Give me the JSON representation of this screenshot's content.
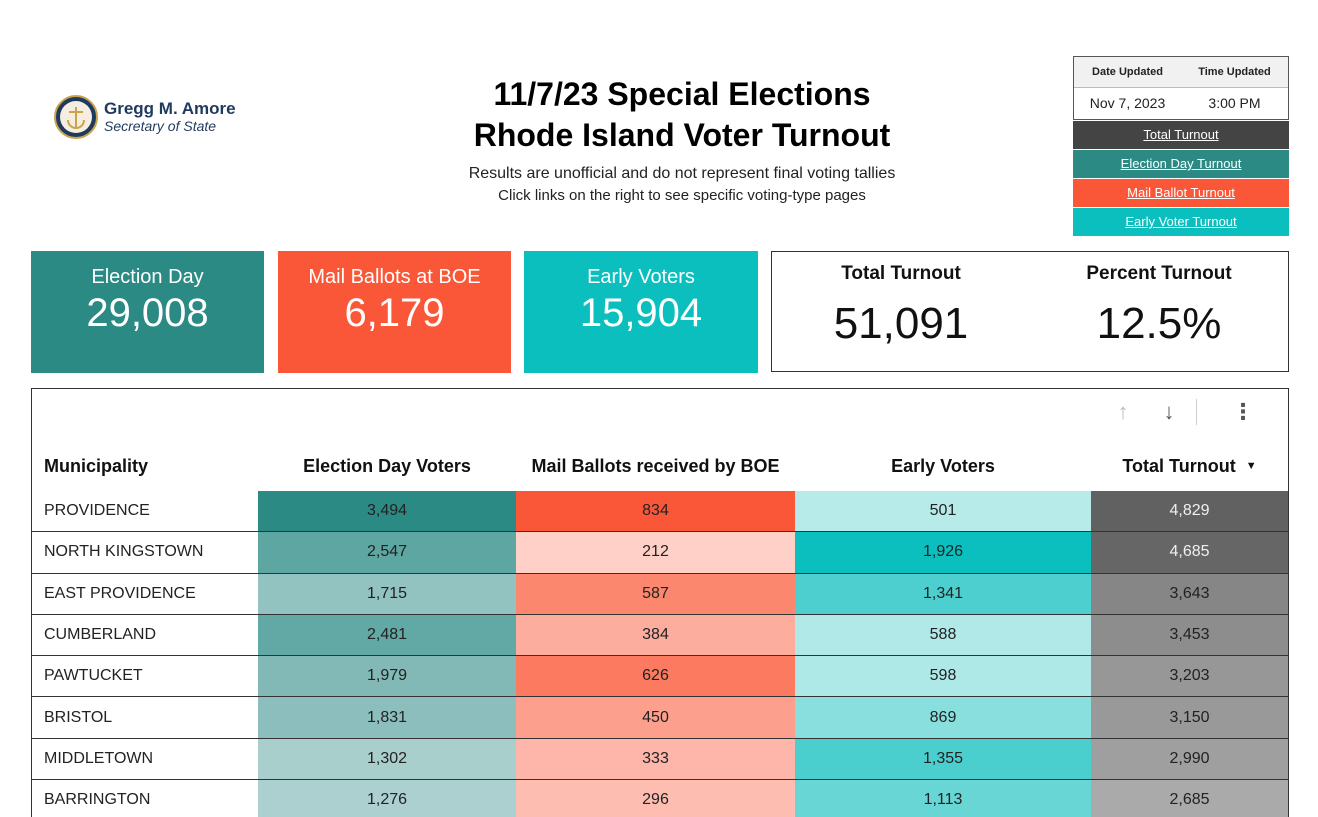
{
  "logo": {
    "name": "Gregg M. Amore",
    "subtitle": "Secretary of State"
  },
  "header": {
    "title_line1": "11/7/23 Special Elections",
    "title_line2": "Rhode Island Voter Turnout",
    "subtitle": "Results are unofficial and do not represent final voting tallies",
    "subtitle2": "Click links on the right to see specific voting-type pages"
  },
  "updated": {
    "date_label": "Date Updated",
    "time_label": "Time Updated",
    "date": "Nov 7, 2023",
    "time": "3:00 PM"
  },
  "links": {
    "total": "Total Turnout",
    "election_day": "Election Day Turnout",
    "mail": "Mail Ballot Turnout",
    "early": "Early Voter Turnout"
  },
  "kpis": {
    "election_day": {
      "label": "Election Day",
      "value": "29,008"
    },
    "mail": {
      "label": "Mail Ballots at BOE",
      "value": "6,179"
    },
    "early": {
      "label": "Early Voters",
      "value": "15,904"
    },
    "total": {
      "label": "Total Turnout",
      "value": "51,091"
    },
    "percent": {
      "label": "Percent Turnout",
      "value": "12.5%"
    }
  },
  "colors": {
    "election_day": "#2b8a84",
    "mail": "#fa5738",
    "early": "#0bbfbf",
    "total": "#444444"
  },
  "table": {
    "columns": [
      "Municipality",
      "Election Day Voters",
      "Mail Ballots received by BOE",
      "Early Voters",
      "Total Turnout"
    ],
    "sort_icon": "caret-down-icon",
    "rows": [
      {
        "municipality": "PROVIDENCE",
        "eday": "3,494",
        "mail": "834",
        "early": "501",
        "total": "4,829",
        "c": [
          "#2b8a84",
          "#fa5738",
          "#b6ebea",
          "#616161"
        ],
        "light": true
      },
      {
        "municipality": "NORTH KINGSTOWN",
        "eday": "2,547",
        "mail": "212",
        "early": "1,926",
        "total": "4,685",
        "c": [
          "#5ea6a2",
          "#fed0c8",
          "#0bbfbf",
          "#666666"
        ],
        "light": true
      },
      {
        "municipality": "EAST PROVIDENCE",
        "eday": "1,715",
        "mail": "587",
        "early": "1,341",
        "total": "3,643",
        "c": [
          "#93c3c1",
          "#fb876f",
          "#4ccfce",
          "#868686"
        ],
        "light": false
      },
      {
        "municipality": "CUMBERLAND",
        "eday": "2,481",
        "mail": "384",
        "early": "588",
        "total": "3,453",
        "c": [
          "#62a8a5",
          "#fcad9e",
          "#b0e9e8",
          "#8d8d8d"
        ],
        "light": false
      },
      {
        "municipality": "PAWTUCKET",
        "eday": "1,979",
        "mail": "626",
        "early": "598",
        "total": "3,203",
        "c": [
          "#82b9b6",
          "#fb7a60",
          "#aee9e8",
          "#979797"
        ],
        "light": false
      },
      {
        "municipality": "BRISTOL",
        "eday": "1,831",
        "mail": "450",
        "early": "869",
        "total": "3,150",
        "c": [
          "#8bbebc",
          "#fc9f8c",
          "#88dfde",
          "#999999"
        ],
        "light": false
      },
      {
        "municipality": "MIDDLETOWN",
        "eday": "1,302",
        "mail": "333",
        "early": "1,355",
        "total": "2,990",
        "c": [
          "#a9cfcd",
          "#fdb6a9",
          "#4acece",
          "#9f9f9f"
        ],
        "light": false
      },
      {
        "municipality": "BARRINGTON",
        "eday": "1,276",
        "mail": "296",
        "early": "1,113",
        "total": "2,685",
        "c": [
          "#abd0cf",
          "#fdbdb1",
          "#67d6d5",
          "#aaaaaa"
        ],
        "light": false
      }
    ]
  }
}
